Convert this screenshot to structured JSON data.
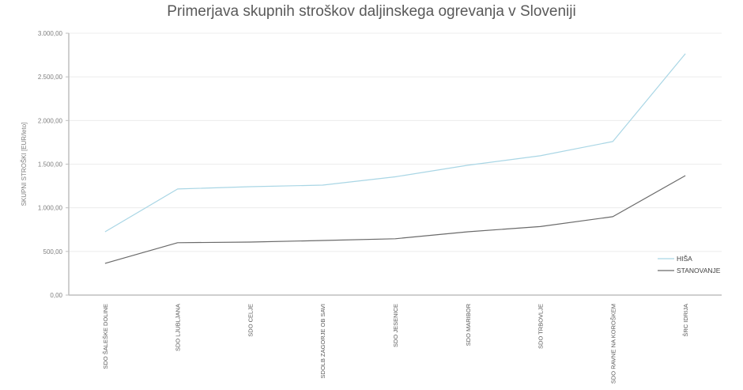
{
  "chart_data": {
    "type": "line",
    "title": "Primerjava skupnih stroškov daljinskega ogrevanja v Sloveniji",
    "xlabel": "",
    "ylabel": "SKUPNI STROŠKI [EUR/leto]",
    "ylim": [
      0,
      3000
    ],
    "yticks": [
      0,
      500,
      1000,
      1500,
      2000,
      2500,
      3000
    ],
    "ytick_labels": [
      "0,00",
      "500,00",
      "1.000,00",
      "1.500,00",
      "2.000,00",
      "2.500,00",
      "3.000,00"
    ],
    "grid": true,
    "legend_position": "right",
    "categories": [
      "SDO ŠALEŠKE DOLINE",
      "SDO LJUBLJANA",
      "SDO CELJE",
      "SDOLB ZAGORJE OB SAVI",
      "SDO JESENICE",
      "SDO MARIBOR",
      "SDO TRBOVLJE",
      "SDO RAVNE NA KOROŠKEM",
      "ŠRC IDRIJA"
    ],
    "series": [
      {
        "name": "HIŠA",
        "color": "#a9d6e5",
        "values": [
          725,
          1215,
          1242,
          1260,
          1355,
          1487,
          1596,
          1759,
          2765
        ]
      },
      {
        "name": "STANOVANJE",
        "color": "#6a6a6a",
        "values": [
          363,
          600,
          607,
          625,
          645,
          725,
          785,
          898,
          1369
        ]
      }
    ]
  }
}
